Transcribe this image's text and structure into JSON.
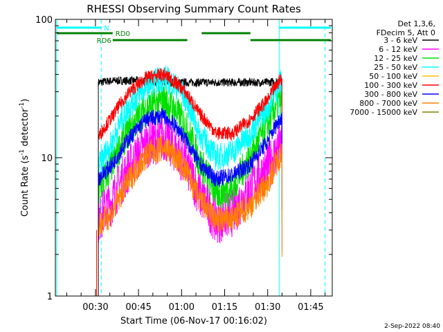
{
  "chart_data": {
    "type": "line",
    "title": "RHESSI Observing Summary Count Rates",
    "xlabel": "Start Time (06-Nov-17 00:16:02)",
    "ylabel_main": "Count Rate (s",
    "ylabel_sup1": "-1",
    "ylabel_mid": " detector",
    "ylabel_sup2": "-1",
    "ylabel_end": ")",
    "yscale": "log",
    "ylim": [
      1,
      100
    ],
    "y_ticks": [
      1,
      10,
      100
    ],
    "y_tick_labels": [
      "1",
      "10",
      "100"
    ],
    "xlim_min": [
      16.03,
      112.5
    ],
    "x_ticks_min": [
      30,
      45,
      60,
      75,
      90,
      105
    ],
    "x_tick_labels": [
      "00:30",
      "00:45",
      "01:00",
      "01:15",
      "01:30",
      "01:45"
    ],
    "legend": {
      "placement": "right",
      "header": [
        "Det 1,3,6,",
        "FDecim 5, Att 0"
      ],
      "entries": [
        {
          "label": "3 - 6 keV",
          "color": "#000000"
        },
        {
          "label": "6 - 12 keV",
          "color": "#ff00ff"
        },
        {
          "label": "12 - 25 keV",
          "color": "#00e000"
        },
        {
          "label": "25 - 50 keV",
          "color": "#00ffff"
        },
        {
          "label": "50 - 100 keV",
          "color": "#ffc000"
        },
        {
          "label": "100 - 300 keV",
          "color": "#ff0000"
        },
        {
          "label": "300 - 800 keV",
          "color": "#0000ff"
        },
        {
          "label": "800 - 7000 keV",
          "color": "#ff8000"
        },
        {
          "label": "7000 - 15000 keV",
          "color": "#808000"
        }
      ]
    },
    "series": [
      {
        "name": "3 - 6 keV",
        "color": "#000000",
        "x_min": [
          31,
          36,
          45,
          55,
          63,
          70,
          80,
          90,
          95
        ],
        "y": [
          35,
          36,
          36,
          35,
          35,
          35,
          35,
          35,
          36
        ],
        "noise": 0.06
      },
      {
        "name": "6 - 12 keV",
        "color": "#ff00ff",
        "x_min": [
          31,
          36,
          42,
          48,
          54,
          60,
          66,
          72,
          78,
          84,
          90,
          95
        ],
        "y": [
          3.5,
          5,
          8.5,
          12.5,
          14,
          10,
          5.5,
          3.5,
          4,
          6,
          8.5,
          12.5
        ],
        "noise": 0.35
      },
      {
        "name": "12 - 25 keV",
        "color": "#00e000",
        "x_min": [
          31,
          36,
          42,
          48,
          54,
          60,
          66,
          72,
          78,
          84,
          90,
          95
        ],
        "y": [
          5.5,
          9,
          16,
          23,
          26,
          19,
          9.5,
          5.5,
          6,
          10,
          17,
          28
        ],
        "noise": 0.25
      },
      {
        "name": "25 - 50 keV",
        "color": "#00ffff",
        "x_min": [
          31,
          36,
          42,
          48,
          54,
          60,
          66,
          72,
          78,
          84,
          90,
          95
        ],
        "y": [
          8.5,
          13,
          24,
          33,
          38,
          30,
          15,
          10,
          11,
          15,
          23,
          36
        ],
        "noise": 0.2
      },
      {
        "name": "100 - 300 keV",
        "color": "#ff0000",
        "x_min": [
          31,
          36,
          42,
          48,
          54,
          60,
          66,
          72,
          78,
          84,
          90,
          95
        ],
        "y": [
          14,
          20,
          30,
          38,
          40,
          32,
          21,
          15,
          15,
          19,
          26,
          38
        ],
        "noise": 0.1
      },
      {
        "name": "300 - 800 keV",
        "color": "#0000ff",
        "x_min": [
          31,
          36,
          42,
          48,
          54,
          60,
          66,
          72,
          78,
          84,
          90,
          95
        ],
        "y": [
          7,
          9,
          14,
          19,
          20,
          15,
          9,
          7,
          7.5,
          9,
          13,
          20
        ],
        "noise": 0.12
      },
      {
        "name": "800 - 7000 keV",
        "color": "#ff8000",
        "x_min": [
          31,
          36,
          42,
          48,
          54,
          60,
          66,
          72,
          78,
          84,
          90,
          95
        ],
        "y": [
          3.2,
          4,
          7,
          10.5,
          12,
          9,
          5,
          3.5,
          3.6,
          4.5,
          6.5,
          11
        ],
        "noise": 0.2
      }
    ],
    "annotations": [
      {
        "label": "N",
        "color": "#00ffff",
        "x_range": [
          16.5,
          32
        ],
        "level": 1
      },
      {
        "label": "RD0",
        "color": "#008000",
        "x_range": [
          16.5,
          36
        ],
        "level": 2
      },
      {
        "label": "RD6",
        "color": "#008000",
        "x_range": [
          36,
          62
        ],
        "level": 3
      },
      {
        "label": "",
        "color": "#008000",
        "x_range": [
          67,
          84
        ],
        "level": 2
      },
      {
        "label": "",
        "color": "#008000",
        "x_range": [
          84,
          112
        ],
        "level": 3
      },
      {
        "label": "",
        "color": "#00ffff",
        "x_range": [
          94,
          112
        ],
        "level": 1
      }
    ],
    "vlines": [
      {
        "x_min": 16.5,
        "color": "#00ffff",
        "style": "solid"
      },
      {
        "x_min": 32,
        "color": "#00ffff",
        "style": "dashed"
      },
      {
        "x_min": 94,
        "color": "#00ffff",
        "style": "solid"
      },
      {
        "x_min": 110,
        "color": "#00ffff",
        "style": "dashed"
      }
    ]
  },
  "footer": {
    "timestamp": "2-Sep-2022 08:40"
  }
}
